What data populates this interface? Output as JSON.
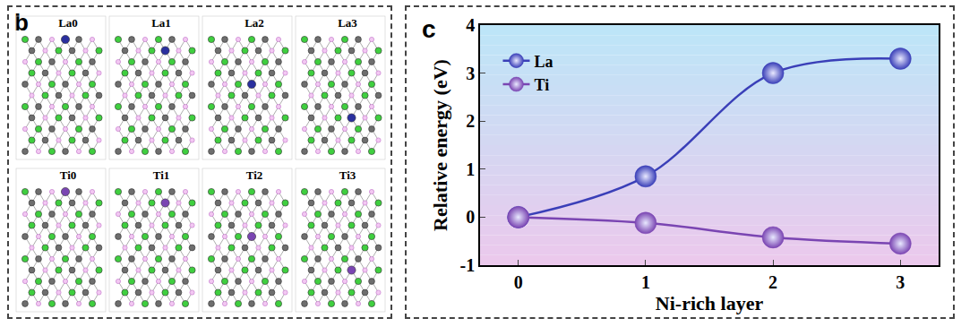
{
  "panel_b": {
    "label": "b",
    "structures": [
      "La0",
      "La1",
      "La2",
      "La3",
      "Ti0",
      "Ti1",
      "Ti2",
      "Ti3"
    ]
  },
  "panel_c_label": "c",
  "chart_data": {
    "type": "line",
    "x_label": "Ni-rich layer",
    "y_label": "Relative energy (eV)",
    "x": [
      0,
      1,
      2,
      3
    ],
    "series": [
      {
        "name": "La",
        "color": "#3a3fb8",
        "values": [
          0,
          0.85,
          3.0,
          3.3
        ]
      },
      {
        "name": "Ti",
        "color": "#7a45b2",
        "values": [
          0,
          -0.12,
          -0.42,
          -0.55
        ]
      }
    ],
    "xlim": [
      -0.3,
      3.3
    ],
    "xticks": [
      0,
      1,
      2,
      3
    ],
    "ylim": [
      -1,
      4
    ],
    "yticks": [
      -1,
      0,
      1,
      2,
      3,
      4
    ],
    "grid": false,
    "legend": "upper left",
    "marker": "circle",
    "line_style": "solid"
  }
}
